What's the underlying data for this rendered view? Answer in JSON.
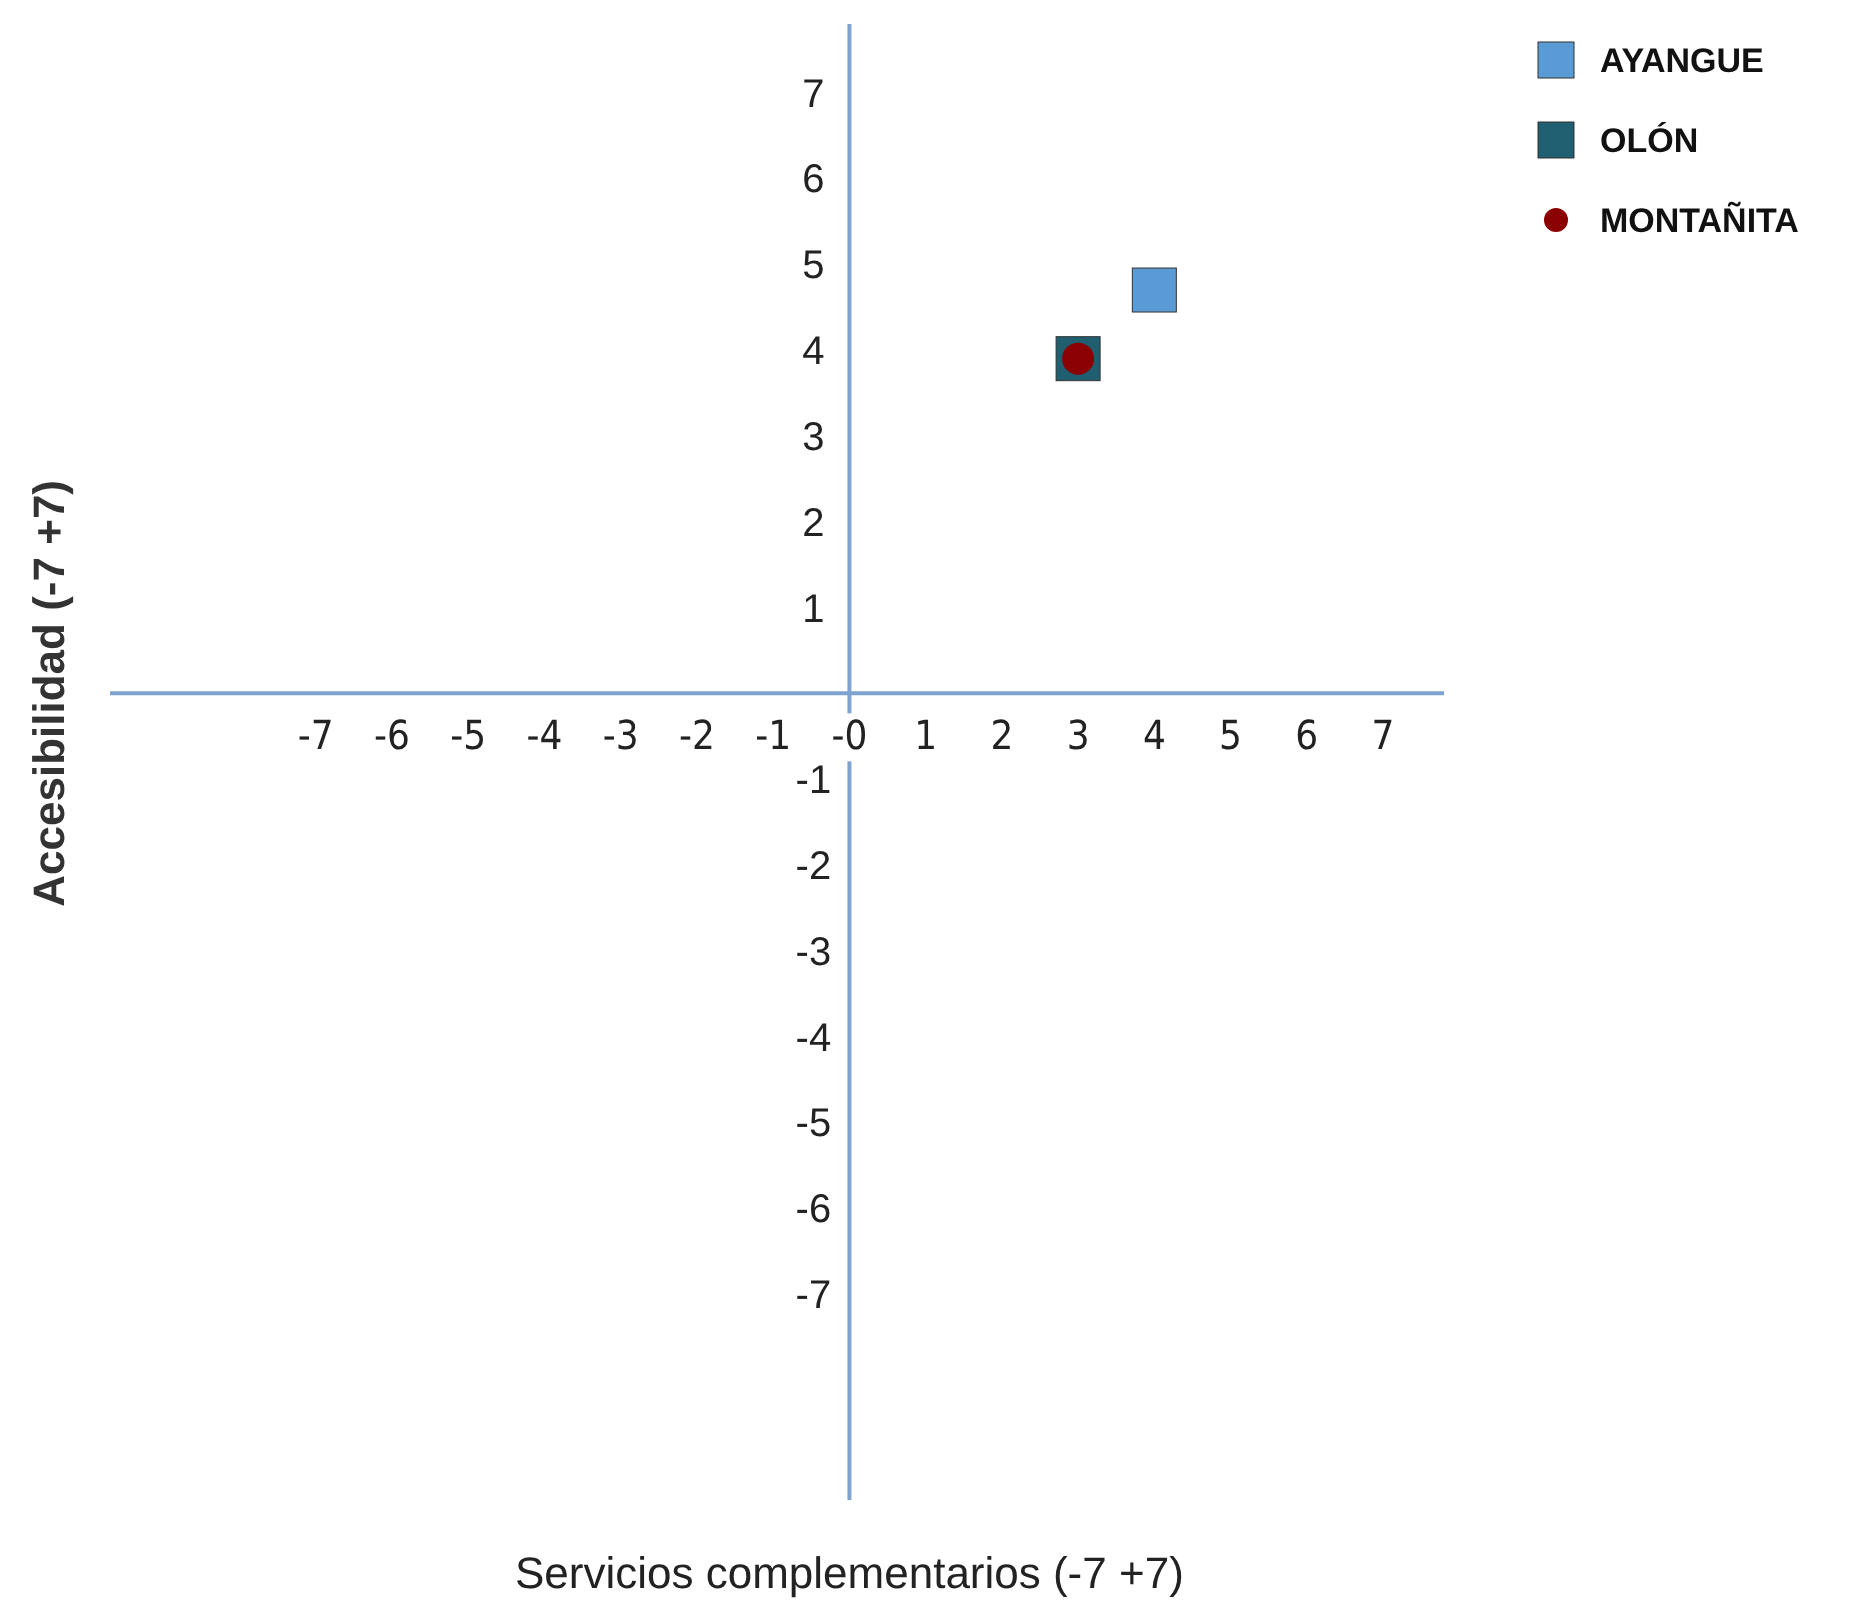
{
  "chart_data": {
    "type": "scatter",
    "xlabel": "Servicios complementarios (-7 +7)",
    "ylabel": "Accesibilidad (-7 +7)",
    "xlim": [
      -9.7,
      7.8
    ],
    "ylim": [
      -9.4,
      7.8
    ],
    "xticks": [
      -7,
      -6,
      -5,
      -4,
      -3,
      -2,
      -1,
      {
        "value": 0,
        "label": "-0"
      },
      1,
      2,
      3,
      4,
      5,
      6,
      7
    ],
    "yticks": [
      -7,
      -6,
      -5,
      -4,
      -3,
      -2,
      -1,
      1,
      2,
      3,
      4,
      5,
      6,
      7
    ],
    "grid": false,
    "x": [
      3,
      4
    ],
    "legend": "top right",
    "series": [
      {
        "name": "AYANGUE",
        "color": "#5b9bd5",
        "marker": "square",
        "values": [
          null,
          4.7
        ]
      },
      {
        "name": "OLÓN",
        "color": "#1f5f70",
        "marker": "square",
        "values": [
          3.9,
          null
        ]
      },
      {
        "name": "MONTAÑITA",
        "color": "#8b0000",
        "marker": "circle",
        "values": [
          3.9,
          null
        ]
      }
    ]
  }
}
